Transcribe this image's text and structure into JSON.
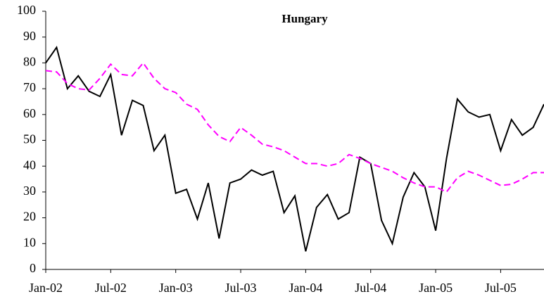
{
  "chart_data": {
    "type": "line",
    "title": "Hungary",
    "categories": [
      "Jan-02",
      null,
      null,
      null,
      null,
      null,
      "Jul-02",
      null,
      null,
      null,
      null,
      null,
      "Jan-03",
      null,
      null,
      null,
      null,
      null,
      "Jul-03",
      null,
      null,
      null,
      null,
      null,
      "Jan-04",
      null,
      null,
      null,
      null,
      null,
      "Jul-04",
      null,
      null,
      null,
      null,
      null,
      "Jan-05",
      null,
      null,
      null,
      null,
      null,
      "Jul-05",
      null,
      null,
      null,
      null
    ],
    "series": [
      {
        "color": "#000000",
        "dash": "solid",
        "values": [
          80,
          86,
          70,
          75,
          69,
          67,
          75.5,
          52,
          65.5,
          63.5,
          46,
          52,
          29.5,
          31,
          19.5,
          33.5,
          12,
          33.5,
          35,
          38.5,
          36.5,
          38,
          22,
          28.5,
          7,
          24,
          29,
          19.5,
          22,
          43.5,
          41,
          19,
          10,
          28,
          37.5,
          32,
          15,
          43,
          66,
          61,
          59,
          60,
          46,
          58,
          52,
          55,
          64
        ]
      },
      {
        "color": "#ff00ff",
        "dash": "dashed",
        "values": [
          77,
          76.5,
          72,
          70,
          69.5,
          74,
          79.5,
          75.5,
          75,
          80,
          74,
          70,
          68.5,
          64,
          62,
          56,
          51.5,
          49.5,
          55,
          52,
          48.5,
          47.5,
          46,
          43.5,
          41,
          41,
          40,
          41,
          44.5,
          43,
          41,
          39.5,
          38,
          35.5,
          33.5,
          32,
          32,
          30,
          35.5,
          38,
          36.5,
          34.5,
          32.5,
          33,
          35,
          37.5,
          37.5
        ]
      }
    ],
    "ylim": [
      0,
      100
    ],
    "yticks": [
      0,
      10,
      20,
      30,
      40,
      50,
      60,
      70,
      80,
      90,
      100
    ],
    "grid": false
  }
}
